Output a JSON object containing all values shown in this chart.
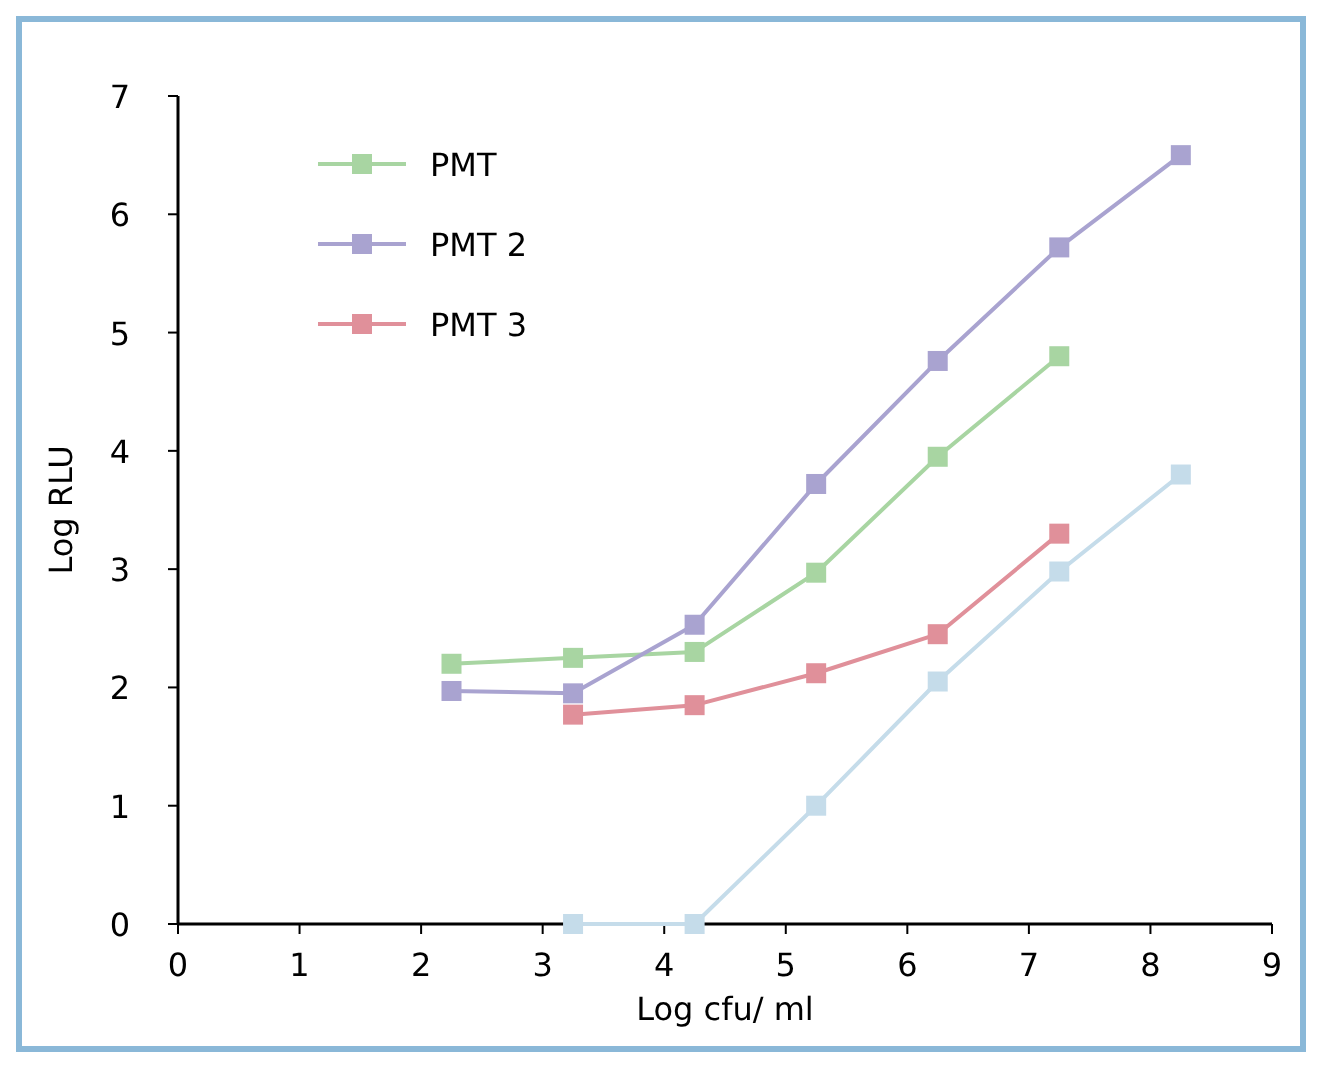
{
  "chart_data": {
    "type": "line",
    "xlabel": "Log cfu/ ml",
    "ylabel": "Log RLU",
    "xlim": [
      0,
      9
    ],
    "ylim": [
      0,
      7
    ],
    "xticks": [
      0,
      1,
      2,
      3,
      4,
      5,
      6,
      7,
      8,
      9
    ],
    "yticks": [
      0,
      1,
      2,
      3,
      4,
      5,
      6,
      7
    ],
    "grid": false,
    "legend": "top left",
    "marker": "square",
    "line_style": "solid",
    "series": [
      {
        "name": "PMT",
        "color": "#a8d5a2",
        "x": [
          2.25,
          3.25,
          4.25,
          5.25,
          6.25,
          7.25
        ],
        "values": [
          2.2,
          2.25,
          2.3,
          2.97,
          3.95,
          4.8
        ]
      },
      {
        "color": "#c5dcea",
        "x": [
          3.25,
          4.25,
          5.25,
          6.25,
          7.25,
          8.25
        ],
        "values": [
          0,
          0,
          1.0,
          2.05,
          2.98,
          3.8
        ]
      },
      {
        "name": "PMT 2",
        "color": "#a9a3d0",
        "x": [
          2.25,
          3.25,
          4.25,
          5.25,
          6.25,
          7.25,
          8.25
        ],
        "values": [
          1.97,
          1.95,
          2.53,
          3.72,
          4.76,
          5.72,
          6.5
        ]
      },
      {
        "name": "PMT 3",
        "color": "#e0909a",
        "x": [
          3.25,
          4.25,
          5.25,
          6.25,
          7.25
        ],
        "values": [
          1.77,
          1.85,
          2.12,
          2.45,
          3.3
        ]
      }
    ]
  }
}
